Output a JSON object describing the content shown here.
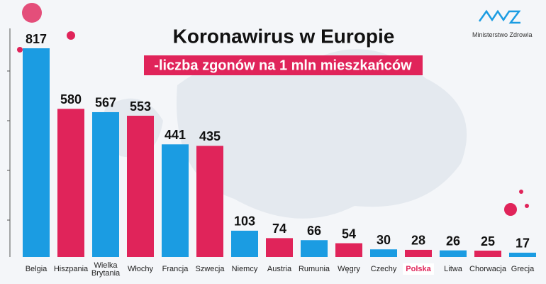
{
  "logo_text": "Ministerstwo Zdrowia",
  "chart_data": {
    "type": "bar",
    "title": "Koronawirus w Europie",
    "subtitle": "-liczba zgonów na 1 mln mieszkańców",
    "categories": [
      "Belgia",
      "Hiszpania",
      "Wielka Brytania",
      "Włochy",
      "Francja",
      "Szwecja",
      "Niemcy",
      "Austria",
      "Rumunia",
      "Węgry",
      "Czechy",
      "Polska",
      "Litwa",
      "Chorwacja",
      "Grecja"
    ],
    "values": [
      817,
      580,
      567,
      553,
      441,
      435,
      103,
      74,
      66,
      54,
      30,
      28,
      26,
      25,
      17
    ],
    "colors": [
      "#1b9ce2",
      "#e0245a",
      "#1b9ce2",
      "#e0245a",
      "#1b9ce2",
      "#e0245a",
      "#1b9ce2",
      "#e0245a",
      "#1b9ce2",
      "#e0245a",
      "#1b9ce2",
      "#e0245a",
      "#1b9ce2",
      "#e0245a",
      "#1b9ce2"
    ],
    "highlight": 11
  }
}
